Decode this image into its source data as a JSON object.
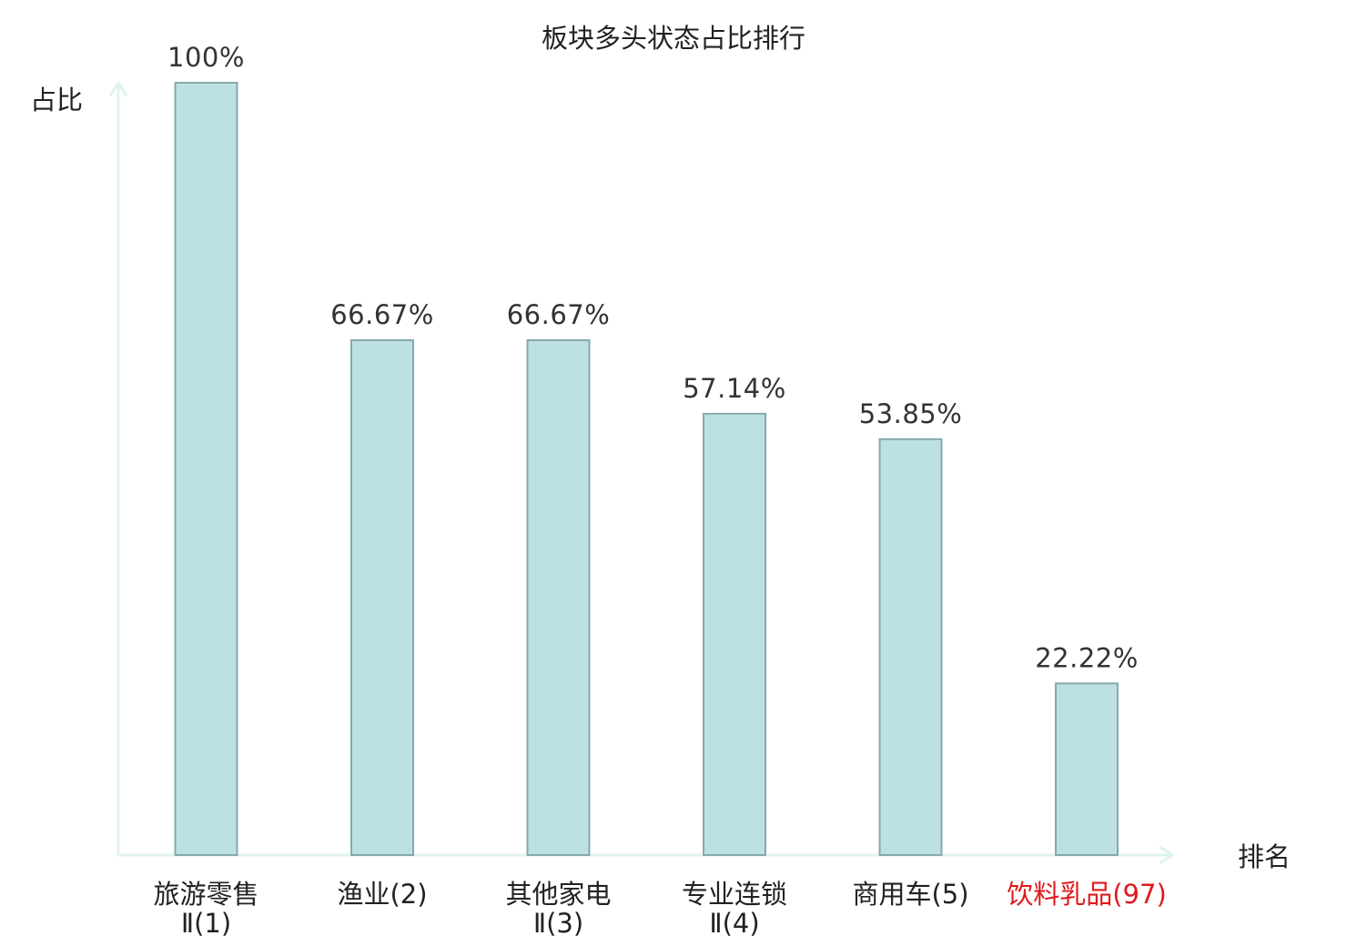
{
  "chart_data": {
    "type": "bar",
    "title": "板块多头状态占比排行",
    "ylabel": "占比",
    "xlabel": "排名",
    "ylim": [
      0,
      100
    ],
    "grid": false,
    "categories": [
      {
        "lines": [
          "旅游零售",
          "Ⅱ(1)"
        ],
        "highlight": false
      },
      {
        "lines": [
          "渔业(2)"
        ],
        "highlight": false
      },
      {
        "lines": [
          "其他家电",
          "Ⅱ(3)"
        ],
        "highlight": false
      },
      {
        "lines": [
          "专业连锁",
          "Ⅱ(4)"
        ],
        "highlight": false
      },
      {
        "lines": [
          "商用车(5)"
        ],
        "highlight": false
      },
      {
        "lines": [
          "饮料乳品(97)"
        ],
        "highlight": true
      }
    ],
    "values": [
      100,
      66.67,
      66.67,
      57.14,
      53.85,
      22.22
    ],
    "value_labels": [
      "100%",
      "66.67%",
      "66.67%",
      "57.14%",
      "53.85%",
      "22.22%"
    ],
    "colors": {
      "bar_fill": "#bde0e3",
      "bar_stroke": "#86a9ab",
      "axis": "#e0f2ef",
      "text": "#222222",
      "highlight_text": "#e0191b"
    }
  }
}
